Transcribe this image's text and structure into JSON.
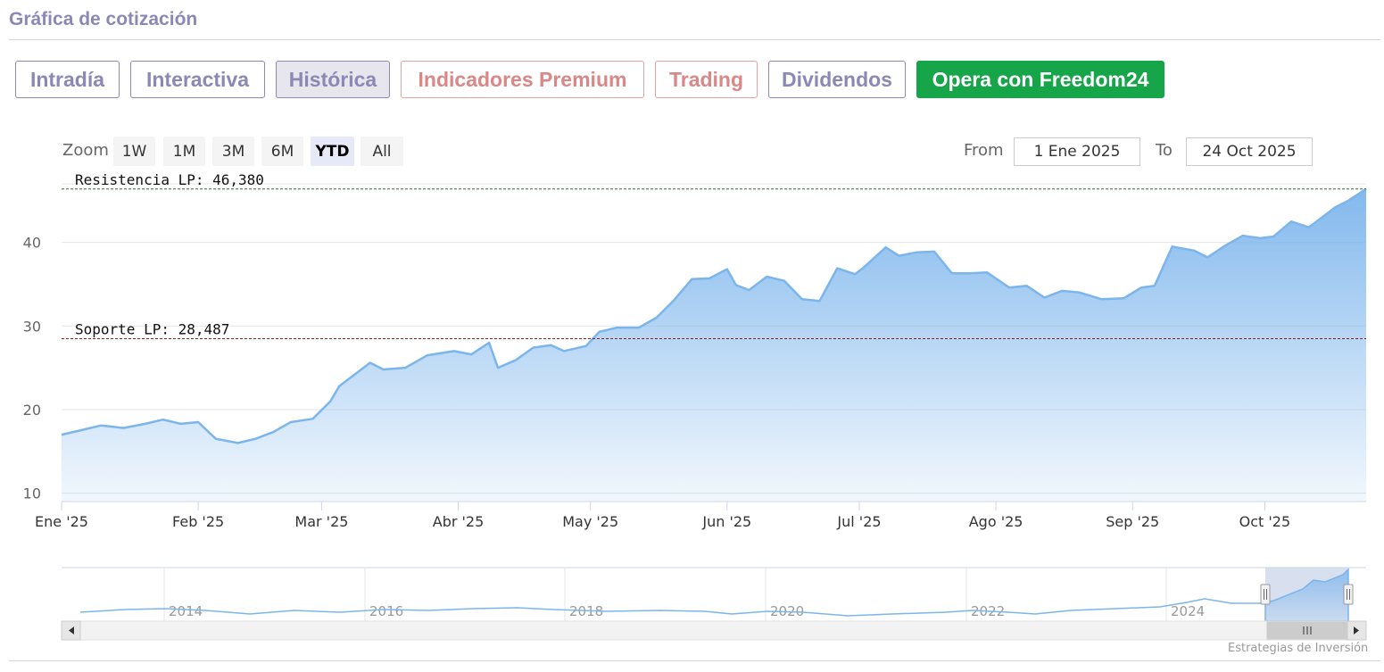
{
  "section_title": "Gráfica de cotización",
  "tabs": [
    {
      "label": "Intradía",
      "style": "normal"
    },
    {
      "label": "Interactiva",
      "style": "normal"
    },
    {
      "label": "Histórica",
      "style": "active"
    },
    {
      "label": "Indicadores Premium",
      "style": "premium"
    },
    {
      "label": "Trading",
      "style": "premium"
    },
    {
      "label": "Dividendos",
      "style": "normal"
    },
    {
      "label": "Opera con Freedom24",
      "style": "cta"
    }
  ],
  "zoom": {
    "label": "Zoom",
    "buttons": [
      "1W",
      "1M",
      "3M",
      "6M",
      "YTD",
      "All"
    ],
    "selected": "YTD"
  },
  "range": {
    "from_label": "From",
    "from_value": "1 Ene 2025",
    "to_label": "To",
    "to_value": "24 Oct 2025"
  },
  "credit": "Estrategias de Inversión",
  "colors": {
    "accent": "#8b88b6",
    "premium": "#d98787",
    "cta": "#17a54a",
    "series": "#7cb5ec",
    "resistance": "#2a6a2a",
    "support": "#8b1a1a"
  },
  "icons": {
    "scroll_left": "left-arrow-icon",
    "scroll_right": "right-arrow-icon",
    "scroll_grip": "grip-icon",
    "handle": "navigator-handle-icon"
  },
  "chart_data": {
    "type": "area",
    "title": "",
    "xlabel": "",
    "ylabel": "",
    "ylim": [
      9,
      47
    ],
    "yticks": [
      10,
      20,
      30,
      40
    ],
    "x_tick_labels": [
      "Ene '25",
      "Feb '25",
      "Mar '25",
      "Abr '25",
      "May '25",
      "Jun '25",
      "Jul '25",
      "Ago '25",
      "Sep '25",
      "Oct '25"
    ],
    "x_range": [
      "2025-01-01",
      "2025-10-24"
    ],
    "grid": true,
    "series": [
      {
        "x": [
          "2025-01-01",
          "2025-01-06",
          "2025-01-10",
          "2025-01-15",
          "2025-01-20",
          "2025-01-24",
          "2025-01-28",
          "2025-02-01",
          "2025-02-05",
          "2025-02-10",
          "2025-02-14",
          "2025-02-18",
          "2025-02-22",
          "2025-02-27",
          "2025-03-03",
          "2025-03-05",
          "2025-03-08",
          "2025-03-12",
          "2025-03-15",
          "2025-03-20",
          "2025-03-25",
          "2025-03-31",
          "2025-04-04",
          "2025-04-08",
          "2025-04-10",
          "2025-04-14",
          "2025-04-18",
          "2025-04-22",
          "2025-04-25",
          "2025-04-30",
          "2025-05-03",
          "2025-05-07",
          "2025-05-12",
          "2025-05-16",
          "2025-05-20",
          "2025-05-24",
          "2025-05-28",
          "2025-06-01",
          "2025-06-03",
          "2025-06-06",
          "2025-06-10",
          "2025-06-14",
          "2025-06-18",
          "2025-06-22",
          "2025-06-26",
          "2025-06-30",
          "2025-07-02",
          "2025-07-07",
          "2025-07-10",
          "2025-07-14",
          "2025-07-18",
          "2025-07-22",
          "2025-07-26",
          "2025-07-30",
          "2025-08-04",
          "2025-08-08",
          "2025-08-12",
          "2025-08-16",
          "2025-08-20",
          "2025-08-25",
          "2025-08-30",
          "2025-09-03",
          "2025-09-06",
          "2025-09-10",
          "2025-09-15",
          "2025-09-18",
          "2025-09-22",
          "2025-09-26",
          "2025-09-30",
          "2025-10-03",
          "2025-10-07",
          "2025-10-11",
          "2025-10-14",
          "2025-10-17",
          "2025-10-20",
          "2025-10-24"
        ],
        "values": [
          17.0,
          17.6,
          18.1,
          17.8,
          18.3,
          18.8,
          18.3,
          18.5,
          16.5,
          16.0,
          16.5,
          17.3,
          18.5,
          18.9,
          21.0,
          22.8,
          24.0,
          25.6,
          24.8,
          25.0,
          26.5,
          27.0,
          26.6,
          28.0,
          25.0,
          25.9,
          27.4,
          27.7,
          27.0,
          27.6,
          29.3,
          29.8,
          29.8,
          31.0,
          33.1,
          35.6,
          35.7,
          36.8,
          34.9,
          34.3,
          35.9,
          35.4,
          33.2,
          33.0,
          36.9,
          36.2,
          37.0,
          39.4,
          38.4,
          38.8,
          38.9,
          36.3,
          36.3,
          36.4,
          34.6,
          34.8,
          33.4,
          34.2,
          34.0,
          33.2,
          33.3,
          34.6,
          34.8,
          39.5,
          39.0,
          38.2,
          39.6,
          40.8,
          40.5,
          40.7,
          42.5,
          41.8,
          43.0,
          44.2,
          45.0,
          46.4
        ]
      }
    ],
    "lines": [
      {
        "label": "Resistencia LP: 46,380",
        "value": 46.38
      },
      {
        "label": "Soporte LP: 28,487",
        "value": 28.487
      }
    ],
    "navigator": {
      "year_labels": [
        "2014",
        "2016",
        "2018",
        "2020",
        "2022",
        "2024"
      ],
      "selected_range": [
        "2025-01-01",
        "2025-10-24"
      ]
    }
  }
}
